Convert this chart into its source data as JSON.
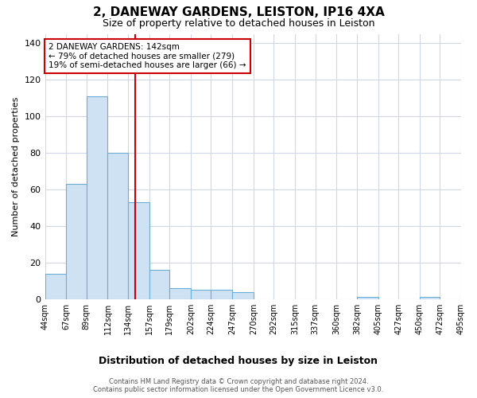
{
  "title": "2, DANEWAY GARDENS, LEISTON, IP16 4XA",
  "subtitle": "Size of property relative to detached houses in Leiston",
  "xlabel": "Distribution of detached houses by size in Leiston",
  "ylabel": "Number of detached properties",
  "bin_edges": [
    44,
    67,
    89,
    112,
    134,
    157,
    179,
    202,
    224,
    247,
    270,
    292,
    315,
    337,
    360,
    382,
    405,
    427,
    450,
    472,
    495
  ],
  "bar_heights": [
    14,
    63,
    111,
    80,
    53,
    16,
    6,
    5,
    5,
    4,
    0,
    0,
    0,
    0,
    0,
    1,
    0,
    0,
    1,
    0
  ],
  "bar_color": "#cfe2f3",
  "bar_edge_color": "#6baed6",
  "property_size": 142,
  "vline_color": "#cc0000",
  "annotation_text": "2 DANEWAY GARDENS: 142sqm\n← 79% of detached houses are smaller (279)\n19% of semi-detached houses are larger (66) →",
  "annotation_box_color": "white",
  "annotation_box_edge_color": "#cc0000",
  "ylim": [
    0,
    145
  ],
  "yticks": [
    0,
    20,
    40,
    60,
    80,
    100,
    120,
    140
  ],
  "footnote": "Contains HM Land Registry data © Crown copyright and database right 2024.\nContains public sector information licensed under the Open Government Licence v3.0.",
  "bg_color": "white",
  "grid_color": "#d0d8e8",
  "tick_labels": [
    "44sqm",
    "67sqm",
    "89sqm",
    "112sqm",
    "134sqm",
    "157sqm",
    "179sqm",
    "202sqm",
    "224sqm",
    "247sqm",
    "270sqm",
    "292sqm",
    "315sqm",
    "337sqm",
    "360sqm",
    "382sqm",
    "405sqm",
    "427sqm",
    "450sqm",
    "472sqm",
    "495sqm"
  ]
}
